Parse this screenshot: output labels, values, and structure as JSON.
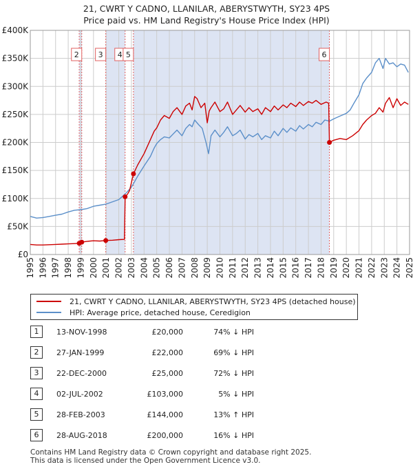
{
  "title_line1": "21, CWRT Y CADNO, LLANILAR, ABERYSTWYTH, SY23 4PS",
  "title_line2": "Price paid vs. HM Land Registry's House Price Index (HPI)",
  "legend": {
    "property": "21, CWRT Y CADNO, LLANILAR, ABERYSTWYTH, SY23 4PS (detached house)",
    "hpi": "HPI: Average price, detached house, Ceredigion"
  },
  "colors": {
    "property": "#cc0000",
    "hpi": "#5b8fc9",
    "shade": "#dde4f3",
    "vline": "#e06060",
    "grid": "#cccccc"
  },
  "sales": [
    {
      "num": "1",
      "date": "13-NOV-1998",
      "price": "£20,000",
      "hpi_rel": "74% ↓ HPI"
    },
    {
      "num": "2",
      "date": "27-JAN-1999",
      "price": "£22,000",
      "hpi_rel": "69% ↓ HPI"
    },
    {
      "num": "3",
      "date": "22-DEC-2000",
      "price": "£25,000",
      "hpi_rel": "72% ↓ HPI"
    },
    {
      "num": "4",
      "date": "02-JUL-2002",
      "price": "£103,000",
      "hpi_rel": "5% ↓ HPI"
    },
    {
      "num": "5",
      "date": "28-FEB-2003",
      "price": "£144,000",
      "hpi_rel": "13% ↑ HPI"
    },
    {
      "num": "6",
      "date": "28-AUG-2018",
      "price": "£200,000",
      "hpi_rel": "16% ↓ HPI"
    }
  ],
  "footer_line1": "Contains HM Land Registry data © Crown copyright and database right 2025.",
  "footer_line2": "This data is licensed under the Open Government Licence v3.0.",
  "chart_data": {
    "type": "line",
    "title": "21, CWRT Y CADNO, LLANILAR, ABERYSTWYTH, SY23 4PS",
    "subtitle": "Price paid vs. HM Land Registry's House Price Index (HPI)",
    "xlabel": "",
    "ylabel": "",
    "xlim": [
      1995,
      2025
    ],
    "ylim": [
      0,
      400000
    ],
    "grid": true,
    "legend_position": "bottom",
    "x_ticks": [
      "1995",
      "1996",
      "1997",
      "1998",
      "1999",
      "2000",
      "2001",
      "2002",
      "2003",
      "2004",
      "2005",
      "2006",
      "2007",
      "2008",
      "2009",
      "2010",
      "2011",
      "2012",
      "2013",
      "2014",
      "2015",
      "2016",
      "2017",
      "2018",
      "2019",
      "2020",
      "2021",
      "2022",
      "2023",
      "2024",
      "2025"
    ],
    "y_ticks": [
      {
        "value": 0,
        "label": "£0"
      },
      {
        "value": 50000,
        "label": "£50K"
      },
      {
        "value": 100000,
        "label": "£100K"
      },
      {
        "value": 150000,
        "label": "£150K"
      },
      {
        "value": 200000,
        "label": "£200K"
      },
      {
        "value": 250000,
        "label": "£250K"
      },
      {
        "value": 300000,
        "label": "£300K"
      },
      {
        "value": 350000,
        "label": "£350K"
      },
      {
        "value": 400000,
        "label": "£400K"
      }
    ],
    "series": [
      {
        "name": "21, CWRT Y CADNO, LLANILAR, ABERYSTWYTH, SY23 4PS (detached house)",
        "x": [
          1995.0,
          1995.5,
          1996.0,
          1996.5,
          1997.0,
          1997.5,
          1998.0,
          1998.5,
          1998.87,
          1999.07,
          1999.5,
          2000.0,
          2000.5,
          2000.97,
          2001.5,
          2002.0,
          2002.45,
          2002.5,
          2002.7,
          2002.85,
          2003.16,
          2003.5,
          2004.0,
          2004.5,
          2004.8,
          2005.0,
          2005.3,
          2005.6,
          2006.0,
          2006.3,
          2006.6,
          2007.0,
          2007.3,
          2007.6,
          2007.8,
          2008.0,
          2008.2,
          2008.5,
          2008.8,
          2009.0,
          2009.15,
          2009.3,
          2009.6,
          2010.0,
          2010.3,
          2010.6,
          2011.0,
          2011.3,
          2011.6,
          2012.0,
          2012.3,
          2012.6,
          2013.0,
          2013.3,
          2013.6,
          2014.0,
          2014.3,
          2014.6,
          2015.0,
          2015.3,
          2015.6,
          2016.0,
          2016.3,
          2016.6,
          2017.0,
          2017.3,
          2017.6,
          2018.0,
          2018.4,
          2018.6,
          2018.66,
          2019.0,
          2019.5,
          2020.0,
          2020.5,
          2021.0,
          2021.3,
          2021.6,
          2022.0,
          2022.3,
          2022.6,
          2022.9,
          2023.1,
          2023.4,
          2023.7,
          2024.0,
          2024.3,
          2024.6,
          2024.9
        ],
        "values": [
          18000,
          17000,
          17000,
          17500,
          18000,
          18500,
          19000,
          19500,
          20000,
          22000,
          23500,
          24500,
          24000,
          25000,
          25500,
          26500,
          27000,
          103000,
          108000,
          114000,
          144000,
          160000,
          180000,
          205000,
          220000,
          226000,
          240000,
          248000,
          243000,
          255000,
          262000,
          250000,
          265000,
          270000,
          258000,
          282000,
          278000,
          262000,
          270000,
          235000,
          256000,
          262000,
          272000,
          255000,
          260000,
          272000,
          250000,
          258000,
          266000,
          254000,
          262000,
          255000,
          260000,
          250000,
          262000,
          255000,
          265000,
          258000,
          267000,
          262000,
          270000,
          264000,
          272000,
          266000,
          273000,
          270000,
          275000,
          268000,
          272000,
          270000,
          200000,
          204000,
          207000,
          205000,
          212000,
          221000,
          232000,
          240000,
          248000,
          252000,
          262000,
          254000,
          270000,
          280000,
          262000,
          278000,
          266000,
          272000,
          268000
        ]
      },
      {
        "name": "HPI: Average price, detached house, Ceredigion",
        "x": [
          1995.0,
          1995.5,
          1996.0,
          1996.5,
          1997.0,
          1997.5,
          1998.0,
          1998.5,
          1999.0,
          1999.5,
          2000.0,
          2000.5,
          2001.0,
          2001.5,
          2002.0,
          2002.5,
          2003.0,
          2003.5,
          2004.0,
          2004.5,
          2004.8,
          2005.0,
          2005.3,
          2005.6,
          2006.0,
          2006.3,
          2006.6,
          2007.0,
          2007.3,
          2007.6,
          2007.8,
          2008.0,
          2008.3,
          2008.6,
          2008.9,
          2009.1,
          2009.3,
          2009.6,
          2010.0,
          2010.3,
          2010.6,
          2011.0,
          2011.3,
          2011.6,
          2012.0,
          2012.3,
          2012.6,
          2013.0,
          2013.3,
          2013.6,
          2014.0,
          2014.3,
          2014.6,
          2015.0,
          2015.3,
          2015.6,
          2016.0,
          2016.3,
          2016.6,
          2017.0,
          2017.3,
          2017.6,
          2018.0,
          2018.3,
          2018.66,
          2019.0,
          2019.3,
          2019.6,
          2020.0,
          2020.3,
          2020.6,
          2021.0,
          2021.3,
          2021.6,
          2022.0,
          2022.3,
          2022.6,
          2022.9,
          2023.1,
          2023.4,
          2023.7,
          2024.0,
          2024.3,
          2024.6,
          2024.9
        ],
        "values": [
          68000,
          65000,
          66000,
          68000,
          70000,
          72000,
          76000,
          79000,
          80000,
          82000,
          86000,
          88000,
          90000,
          94000,
          98000,
          108000,
          120000,
          140000,
          158000,
          175000,
          190000,
          198000,
          205000,
          210000,
          208000,
          215000,
          222000,
          212000,
          225000,
          232000,
          228000,
          240000,
          232000,
          225000,
          200000,
          180000,
          212000,
          222000,
          210000,
          218000,
          228000,
          212000,
          216000,
          222000,
          206000,
          214000,
          210000,
          216000,
          205000,
          212000,
          208000,
          220000,
          212000,
          225000,
          218000,
          226000,
          220000,
          230000,
          224000,
          232000,
          228000,
          236000,
          232000,
          240000,
          238000,
          242000,
          245000,
          248000,
          252000,
          258000,
          270000,
          285000,
          305000,
          315000,
          325000,
          342000,
          350000,
          332000,
          350000,
          340000,
          342000,
          335000,
          340000,
          338000,
          325000
        ]
      }
    ],
    "sale_markers": [
      {
        "label": "1",
        "x": 1998.87,
        "value": 20000
      },
      {
        "label": "2",
        "x": 1999.07,
        "value": 22000
      },
      {
        "label": "3",
        "x": 2000.97,
        "value": 25000
      },
      {
        "label": "4",
        "x": 2002.5,
        "value": 103000
      },
      {
        "label": "5",
        "x": 2003.16,
        "value": 144000
      },
      {
        "label": "6",
        "x": 2018.66,
        "value": 200000
      }
    ],
    "shaded_spans": [
      [
        1998.87,
        1999.07
      ],
      [
        2000.97,
        2002.5
      ],
      [
        2003.16,
        2018.66
      ]
    ]
  }
}
